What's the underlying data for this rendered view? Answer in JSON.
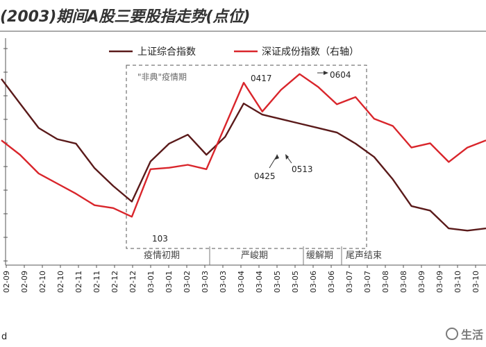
{
  "chart_data": {
    "type": "line",
    "title": "(2003)期间A股三要股指走势(点位)",
    "x": [
      "02-09",
      "02-09",
      "02-10",
      "02-10",
      "02-11",
      "02-11",
      "02-12",
      "02-12",
      "03-01",
      "03-01",
      "03-02",
      "03-03",
      "03-03",
      "03-04",
      "03-04",
      "03-05",
      "03-05",
      "03-06",
      "03-06",
      "03-07",
      "03-07",
      "03-08",
      "03-08",
      "03-09",
      "03-09",
      "03-10",
      "03-10"
    ],
    "series": [
      {
        "name": "上证综合指数",
        "color": "#5a1a1a",
        "values": [
          1680,
          1625,
          1570,
          1545,
          1535,
          1480,
          1440,
          1405,
          1495,
          1535,
          1555,
          1510,
          1550,
          1625,
          1600,
          1590,
          1580,
          1570,
          1560,
          1535,
          1505,
          1455,
          1395,
          1385,
          1345,
          1340,
          1345
        ]
      },
      {
        "name": "深证成份指数（右轴）",
        "color": "#d9252b",
        "values": [
          3350,
          3250,
          3120,
          3050,
          2980,
          2900,
          2880,
          2820,
          3150,
          3160,
          3180,
          3150,
          3450,
          3750,
          3550,
          3700,
          3810,
          3720,
          3600,
          3650,
          3500,
          3450,
          3300,
          3330,
          3200,
          3300,
          3350
        ]
      }
    ],
    "legend_position": "top",
    "annotations": [
      "0417",
      "0425",
      "0513",
      "0604",
      "103"
    ],
    "phases": [
      "疫情初期",
      "严峻期",
      "缓解期",
      "尾声结束"
    ],
    "region_label": "\"非典\"疫情期",
    "grid": false
  },
  "footer": {
    "source_fragment": "d"
  },
  "watermark": {
    "text": "生活"
  }
}
